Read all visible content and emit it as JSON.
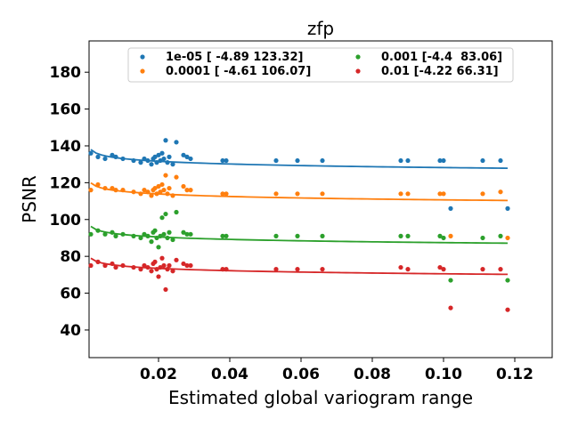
{
  "chart_data": {
    "type": "scatter",
    "title": "zfp",
    "xlabel": "Estimated global variogram range",
    "ylabel": "PSNR",
    "xlim": [
      0.0005,
      0.1305
    ],
    "ylim": [
      25,
      197
    ],
    "xticks": [
      0.02,
      0.04,
      0.06,
      0.08,
      0.1,
      0.12
    ],
    "xtick_labels": [
      "0.02",
      "0.04",
      "0.06",
      "0.08",
      "0.10",
      "0.12"
    ],
    "yticks": [
      40,
      60,
      80,
      100,
      120,
      140,
      160,
      180
    ],
    "ytick_labels": [
      "40",
      "60",
      "80",
      "100",
      "120",
      "140",
      "160",
      "180"
    ],
    "grid": false,
    "legend_placement": "top-center",
    "legend_columns": 2,
    "series": [
      {
        "name": "1e-05 [ -4.89 123.32]",
        "color": "#1f77b4",
        "fit_a": -4.89,
        "fit_b": 123.32,
        "points": [
          [
            0.001,
            136
          ],
          [
            0.003,
            134
          ],
          [
            0.005,
            133
          ],
          [
            0.007,
            135
          ],
          [
            0.008,
            134
          ],
          [
            0.01,
            133
          ],
          [
            0.013,
            132
          ],
          [
            0.015,
            131
          ],
          [
            0.016,
            133
          ],
          [
            0.017,
            132
          ],
          [
            0.018,
            130
          ],
          [
            0.0185,
            133
          ],
          [
            0.019,
            134
          ],
          [
            0.0195,
            131
          ],
          [
            0.02,
            135
          ],
          [
            0.0205,
            132
          ],
          [
            0.021,
            136
          ],
          [
            0.0215,
            133
          ],
          [
            0.022,
            143
          ],
          [
            0.0225,
            131
          ],
          [
            0.023,
            134
          ],
          [
            0.024,
            130
          ],
          [
            0.025,
            142
          ],
          [
            0.027,
            135
          ],
          [
            0.028,
            134
          ],
          [
            0.029,
            133
          ],
          [
            0.038,
            132
          ],
          [
            0.039,
            132
          ],
          [
            0.053,
            132
          ],
          [
            0.059,
            132
          ],
          [
            0.066,
            132
          ],
          [
            0.088,
            132
          ],
          [
            0.09,
            132
          ],
          [
            0.099,
            132
          ],
          [
            0.1,
            132
          ],
          [
            0.102,
            106
          ],
          [
            0.111,
            132
          ],
          [
            0.116,
            132
          ],
          [
            0.118,
            106
          ]
        ]
      },
      {
        "name": "0.0001 [ -4.61 106.07]",
        "color": "#ff7f0e",
        "fit_a": -4.61,
        "fit_b": 106.07,
        "points": [
          [
            0.001,
            116
          ],
          [
            0.003,
            119
          ],
          [
            0.005,
            117
          ],
          [
            0.007,
            117
          ],
          [
            0.008,
            116
          ],
          [
            0.01,
            116
          ],
          [
            0.013,
            115
          ],
          [
            0.015,
            114
          ],
          [
            0.016,
            116
          ],
          [
            0.017,
            115
          ],
          [
            0.018,
            113
          ],
          [
            0.0185,
            116
          ],
          [
            0.019,
            117
          ],
          [
            0.0195,
            114
          ],
          [
            0.02,
            118
          ],
          [
            0.0205,
            115
          ],
          [
            0.021,
            119
          ],
          [
            0.0215,
            116
          ],
          [
            0.022,
            124
          ],
          [
            0.0225,
            114
          ],
          [
            0.023,
            117
          ],
          [
            0.024,
            113
          ],
          [
            0.025,
            123
          ],
          [
            0.027,
            118
          ],
          [
            0.028,
            116
          ],
          [
            0.029,
            116
          ],
          [
            0.038,
            114
          ],
          [
            0.039,
            114
          ],
          [
            0.053,
            114
          ],
          [
            0.059,
            114
          ],
          [
            0.066,
            114
          ],
          [
            0.088,
            114
          ],
          [
            0.09,
            114
          ],
          [
            0.099,
            114
          ],
          [
            0.1,
            114
          ],
          [
            0.102,
            91
          ],
          [
            0.111,
            114
          ],
          [
            0.116,
            115
          ],
          [
            0.118,
            90
          ]
        ]
      },
      {
        "name": "0.001 [-4.4  83.06]",
        "color": "#2ca02c",
        "fit_a": -4.4,
        "fit_b": 83.06,
        "points": [
          [
            0.001,
            92
          ],
          [
            0.003,
            94
          ],
          [
            0.005,
            92
          ],
          [
            0.007,
            93
          ],
          [
            0.008,
            91
          ],
          [
            0.01,
            92
          ],
          [
            0.013,
            91
          ],
          [
            0.015,
            90
          ],
          [
            0.016,
            92
          ],
          [
            0.017,
            91
          ],
          [
            0.018,
            88
          ],
          [
            0.0185,
            93
          ],
          [
            0.019,
            94
          ],
          [
            0.0195,
            90
          ],
          [
            0.02,
            85
          ],
          [
            0.0205,
            91
          ],
          [
            0.021,
            101
          ],
          [
            0.0215,
            92
          ],
          [
            0.022,
            103
          ],
          [
            0.0225,
            90
          ],
          [
            0.023,
            93
          ],
          [
            0.024,
            89
          ],
          [
            0.025,
            104
          ],
          [
            0.027,
            93
          ],
          [
            0.028,
            92
          ],
          [
            0.029,
            92
          ],
          [
            0.038,
            91
          ],
          [
            0.039,
            91
          ],
          [
            0.053,
            91
          ],
          [
            0.059,
            91
          ],
          [
            0.066,
            91
          ],
          [
            0.088,
            91
          ],
          [
            0.09,
            91
          ],
          [
            0.099,
            91
          ],
          [
            0.1,
            90
          ],
          [
            0.102,
            67
          ],
          [
            0.111,
            90
          ],
          [
            0.116,
            91
          ],
          [
            0.118,
            67
          ]
        ]
      },
      {
        "name": "0.01 [-4.22 66.31]",
        "color": "#d62728",
        "fit_a": -4.22,
        "fit_b": 66.31,
        "points": [
          [
            0.001,
            75
          ],
          [
            0.003,
            77
          ],
          [
            0.005,
            75
          ],
          [
            0.007,
            76
          ],
          [
            0.008,
            74
          ],
          [
            0.01,
            75
          ],
          [
            0.013,
            74
          ],
          [
            0.015,
            73
          ],
          [
            0.016,
            75
          ],
          [
            0.017,
            74
          ],
          [
            0.018,
            72
          ],
          [
            0.0185,
            76
          ],
          [
            0.019,
            77
          ],
          [
            0.0195,
            73
          ],
          [
            0.02,
            69
          ],
          [
            0.0205,
            74
          ],
          [
            0.021,
            79
          ],
          [
            0.0215,
            75
          ],
          [
            0.022,
            62
          ],
          [
            0.0225,
            73
          ],
          [
            0.023,
            75
          ],
          [
            0.024,
            72
          ],
          [
            0.025,
            78
          ],
          [
            0.027,
            76
          ],
          [
            0.028,
            75
          ],
          [
            0.029,
            75
          ],
          [
            0.038,
            73
          ],
          [
            0.039,
            73
          ],
          [
            0.053,
            73
          ],
          [
            0.059,
            73
          ],
          [
            0.066,
            73
          ],
          [
            0.088,
            74
          ],
          [
            0.09,
            73
          ],
          [
            0.099,
            74
          ],
          [
            0.1,
            73
          ],
          [
            0.102,
            52
          ],
          [
            0.111,
            73
          ],
          [
            0.116,
            73
          ],
          [
            0.118,
            51
          ]
        ]
      }
    ]
  }
}
